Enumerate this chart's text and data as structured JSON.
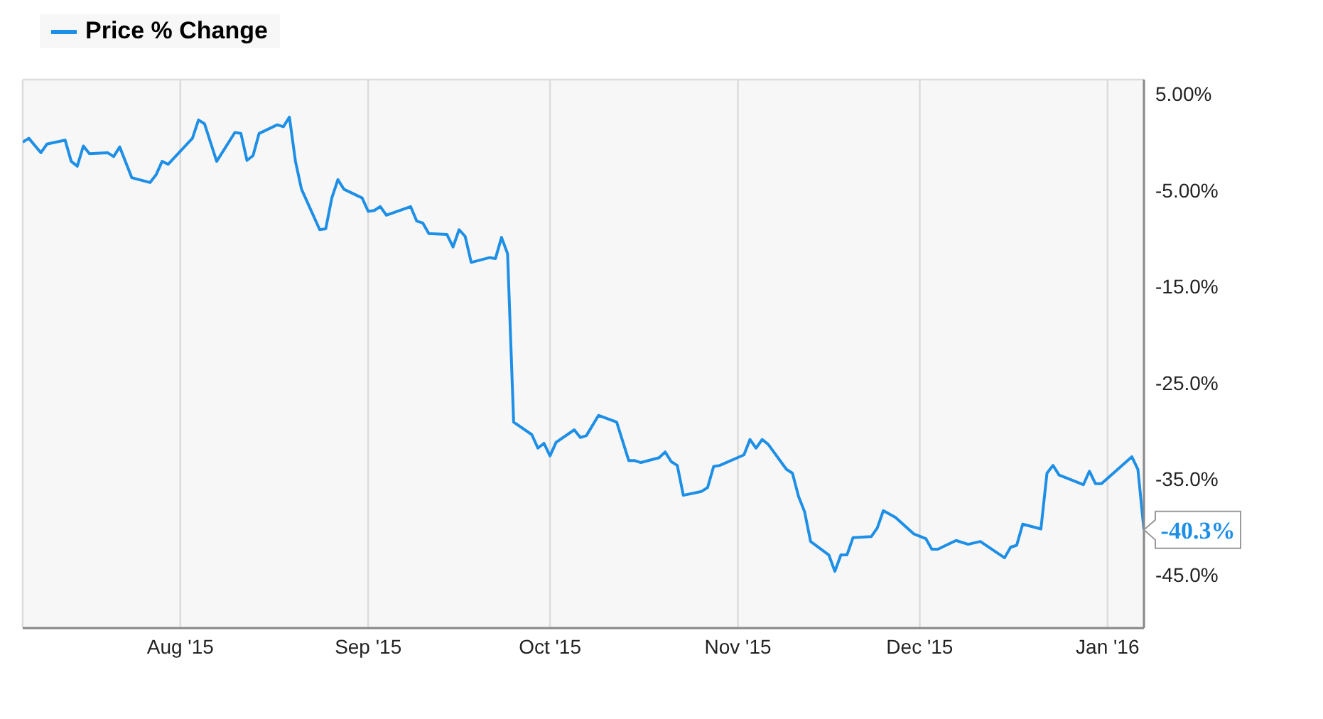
{
  "chart_data": {
    "type": "line",
    "series": [
      {
        "name": "Price % Change",
        "color": "#1e8fe6",
        "x": [
          "2015-07-06",
          "2015-07-07",
          "2015-07-09",
          "2015-07-10",
          "2015-07-13",
          "2015-07-14",
          "2015-07-15",
          "2015-07-16",
          "2015-07-17",
          "2015-07-20",
          "2015-07-21",
          "2015-07-22",
          "2015-07-24",
          "2015-07-27",
          "2015-07-28",
          "2015-07-29",
          "2015-07-30",
          "2015-08-03",
          "2015-08-04",
          "2015-08-05",
          "2015-08-07",
          "2015-08-10",
          "2015-08-11",
          "2015-08-12",
          "2015-08-13",
          "2015-08-14",
          "2015-08-17",
          "2015-08-18",
          "2015-08-19",
          "2015-08-20",
          "2015-08-21",
          "2015-08-24",
          "2015-08-25",
          "2015-08-26",
          "2015-08-27",
          "2015-08-28",
          "2015-08-31",
          "2015-09-01",
          "2015-09-02",
          "2015-09-03",
          "2015-09-04",
          "2015-09-08",
          "2015-09-09",
          "2015-09-10",
          "2015-09-11",
          "2015-09-14",
          "2015-09-15",
          "2015-09-16",
          "2015-09-17",
          "2015-09-18",
          "2015-09-21",
          "2015-09-22",
          "2015-09-23",
          "2015-09-24",
          "2015-09-25",
          "2015-09-28",
          "2015-09-29",
          "2015-09-30",
          "2015-10-01",
          "2015-10-02",
          "2015-10-05",
          "2015-10-06",
          "2015-10-07",
          "2015-10-09",
          "2015-10-12",
          "2015-10-14",
          "2015-10-15",
          "2015-10-16",
          "2015-10-19",
          "2015-10-20",
          "2015-10-21",
          "2015-10-22",
          "2015-10-23",
          "2015-10-26",
          "2015-10-27",
          "2015-10-28",
          "2015-10-29",
          "2015-11-02",
          "2015-11-03",
          "2015-11-04",
          "2015-11-05",
          "2015-11-06",
          "2015-11-09",
          "2015-11-10",
          "2015-11-11",
          "2015-11-12",
          "2015-11-13",
          "2015-11-16",
          "2015-11-17",
          "2015-11-18",
          "2015-11-19",
          "2015-11-20",
          "2015-11-23",
          "2015-11-24",
          "2015-11-25",
          "2015-11-27",
          "2015-11-30",
          "2015-12-02",
          "2015-12-03",
          "2015-12-04",
          "2015-12-07",
          "2015-12-09",
          "2015-12-11",
          "2015-12-15",
          "2015-12-16",
          "2015-12-17",
          "2015-12-18",
          "2015-12-21",
          "2015-12-22",
          "2015-12-23",
          "2015-12-24",
          "2015-12-28",
          "2015-12-29",
          "2015-12-30",
          "2015-12-31",
          "2016-01-05",
          "2016-01-06",
          "2016-01-07"
        ],
        "values": [
          0.0,
          0.4,
          -1.1,
          -0.2,
          0.2,
          -2.0,
          -2.5,
          -0.4,
          -1.2,
          -1.1,
          -1.5,
          -0.5,
          -3.7,
          -4.2,
          -3.4,
          -2.0,
          -2.3,
          0.4,
          2.3,
          1.9,
          -2.0,
          1.0,
          0.9,
          -1.9,
          -1.4,
          0.9,
          1.8,
          1.6,
          2.6,
          -2.0,
          -4.9,
          -9.1,
          -9.0,
          -5.8,
          -3.9,
          -4.9,
          -5.8,
          -7.2,
          -7.1,
          -6.7,
          -7.6,
          -6.7,
          -8.2,
          -8.4,
          -9.5,
          -9.6,
          -10.9,
          -9.1,
          -9.8,
          -12.5,
          -12.0,
          -12.1,
          -9.9,
          -11.6,
          -29.1,
          -30.4,
          -31.8,
          -31.3,
          -32.6,
          -31.2,
          -29.9,
          -30.7,
          -30.5,
          -28.4,
          -29.1,
          -33.1,
          -33.1,
          -33.3,
          -32.8,
          -32.2,
          -33.2,
          -33.6,
          -36.7,
          -36.3,
          -35.9,
          -33.7,
          -33.6,
          -32.5,
          -30.9,
          -31.8,
          -30.9,
          -31.4,
          -34.0,
          -34.4,
          -36.8,
          -38.4,
          -41.5,
          -42.9,
          -44.6,
          -42.9,
          -42.9,
          -41.1,
          -41.0,
          -40.1,
          -38.3,
          -39.0,
          -40.7,
          -41.2,
          -42.3,
          -42.3,
          -41.4,
          -41.8,
          -41.5,
          -43.2,
          -42.1,
          -41.9,
          -39.7,
          -40.2,
          -34.4,
          -33.6,
          -34.6,
          -35.6,
          -34.2,
          -35.5,
          -35.5,
          -32.7,
          -34.0,
          -40.3
        ]
      }
    ],
    "xlim": [
      "2015-07-06",
      "2016-01-07"
    ],
    "xticks": [
      {
        "value": "2015-08-01",
        "label": "Aug '15"
      },
      {
        "value": "2015-09-01",
        "label": "Sep '15"
      },
      {
        "value": "2015-10-01",
        "label": "Oct '15"
      },
      {
        "value": "2015-11-01",
        "label": "Nov '15"
      },
      {
        "value": "2015-12-01",
        "label": "Dec '15"
      },
      {
        "value": "2016-01-01",
        "label": "Jan '16"
      }
    ],
    "ylim": [
      -50.5,
      6.5
    ],
    "yticks": [
      {
        "value": 5,
        "label": "5.00%"
      },
      {
        "value": -5,
        "label": "-5.00%"
      },
      {
        "value": -15,
        "label": "-15.0%"
      },
      {
        "value": -25,
        "label": "-25.0%"
      },
      {
        "value": -35,
        "label": "-35.0%"
      },
      {
        "value": -45,
        "label": "-45.0%"
      }
    ],
    "annotations": [
      {
        "text": "-40.3%",
        "x": "2016-01-07",
        "y": -40.3
      }
    ],
    "grid": true,
    "legend": "top left",
    "marker": "none",
    "line_style": "solid"
  }
}
